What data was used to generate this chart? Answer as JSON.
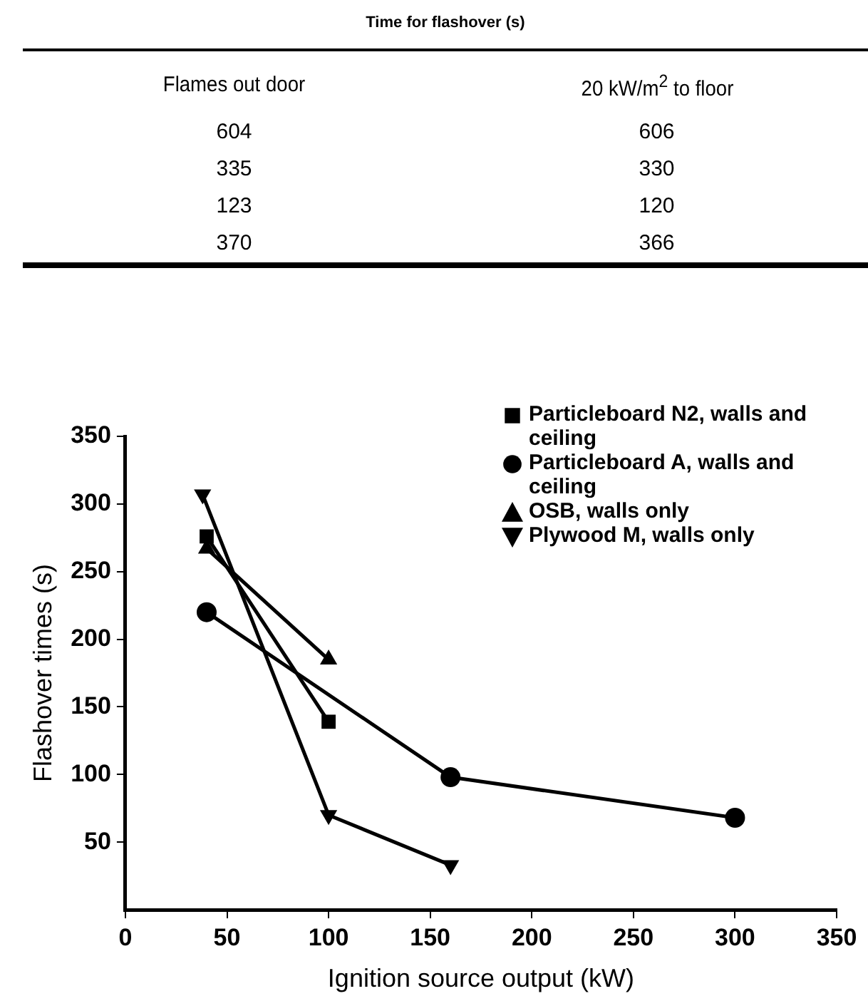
{
  "chart_data": [
    {
      "type": "other",
      "title": "Time for flashover (s)",
      "annotations": [
        "Flames out door",
        "20 kW/m$^{2}$ to floor",
        "604",
        "606",
        "335",
        "330",
        "123",
        "120",
        "370",
        "366"
      ]
    },
    {
      "type": "line",
      "xlabel": "Ignition source output (kW)",
      "ylabel": "Flashover times (s)",
      "xlim": [
        0,
        350
      ],
      "xticks": [
        0,
        50,
        100,
        150,
        200,
        250,
        300,
        350
      ],
      "ylim": [
        0,
        350
      ],
      "yticks": [
        50,
        100,
        150,
        200,
        250,
        300,
        350
      ],
      "grid": false,
      "legend": "top right",
      "line_style": "solid",
      "series": [
        {
          "name": "Particleboard N2, walls and ceiling",
          "color": "#000000",
          "marker": "square",
          "x": [
            40,
            100
          ],
          "values": [
            276,
            139
          ]
        },
        {
          "name": "Particleboard A, walls and ceiling",
          "color": "#000000",
          "marker": "circle",
          "x": [
            40,
            160,
            300
          ],
          "values": [
            220,
            98,
            68
          ]
        },
        {
          "name": "OSB, walls only",
          "color": "#000000",
          "marker": "triangle",
          "x": [
            40,
            100
          ],
          "values": [
            267,
            185
          ]
        },
        {
          "name": "Plywood M, walls only",
          "color": "#000000",
          "marker": "triangle-down",
          "x": [
            38,
            100,
            160
          ],
          "values": [
            307,
            70,
            33
          ]
        }
      ]
    }
  ]
}
